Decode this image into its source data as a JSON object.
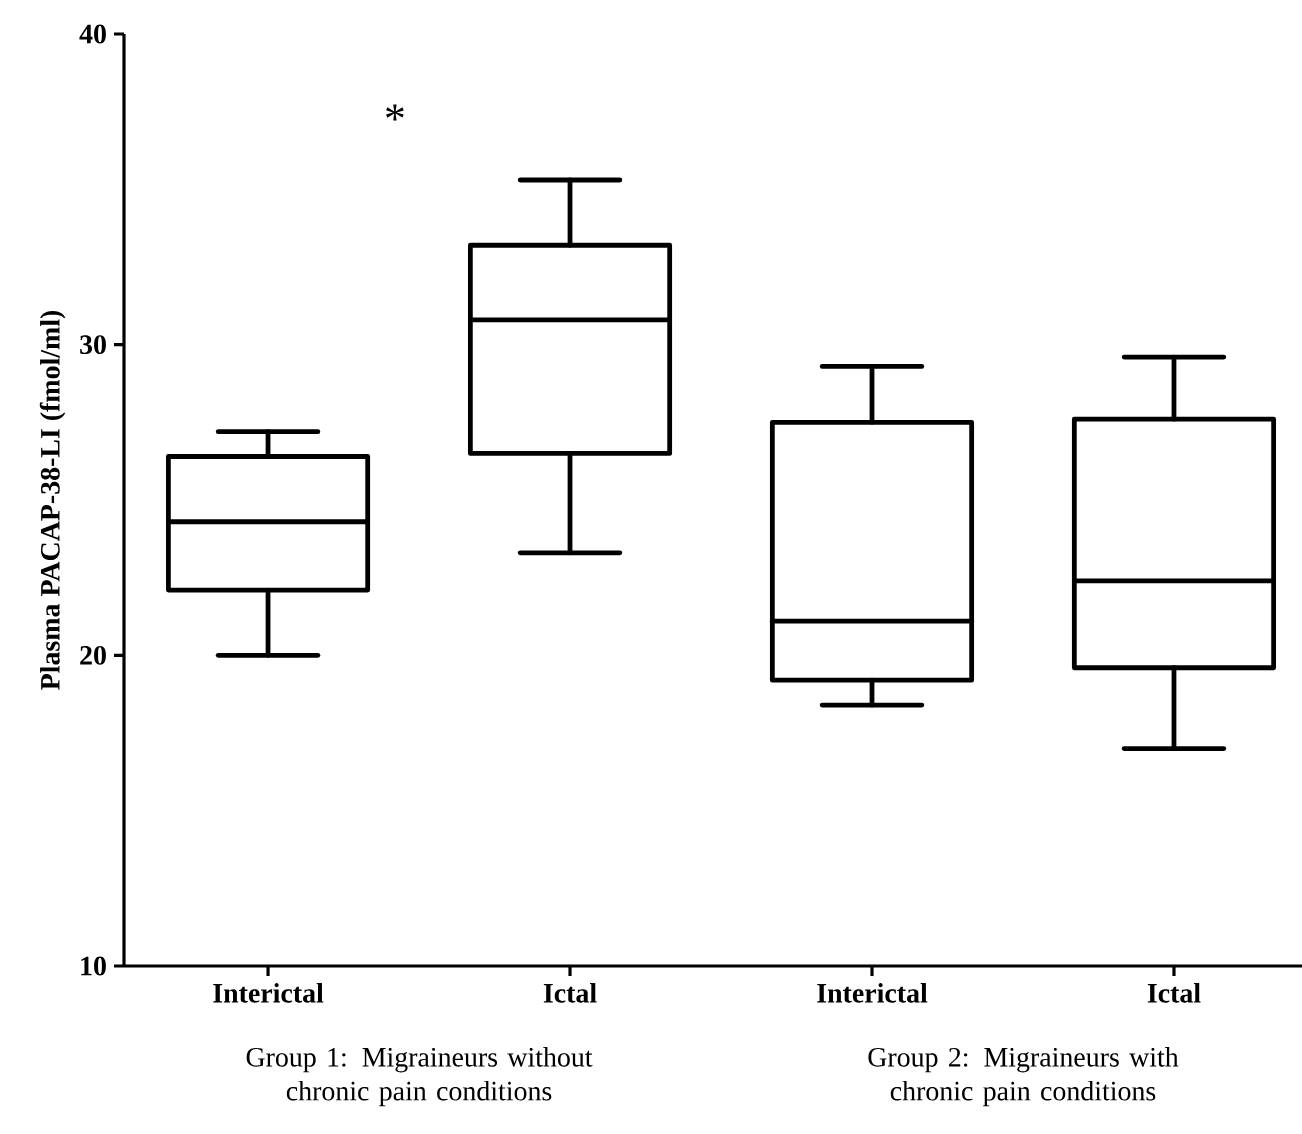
{
  "chart_data": {
    "type": "box",
    "ylabel": "Plasma PACAP-38-LI (fmol/ml)",
    "categories": [
      "Interictal",
      "Ictal",
      "Interictal",
      "Ictal"
    ],
    "boxes": [
      {
        "low": 20.0,
        "q1": 22.1,
        "median": 24.3,
        "q3": 26.4,
        "high": 27.2
      },
      {
        "low": 23.3,
        "q1": 26.5,
        "median": 30.8,
        "q3": 33.2,
        "high": 35.3
      },
      {
        "low": 18.4,
        "q1": 19.2,
        "median": 21.1,
        "q3": 27.5,
        "high": 29.3
      },
      {
        "low": 17.0,
        "q1": 19.6,
        "median": 22.4,
        "q3": 27.6,
        "high": 29.6
      }
    ],
    "ylim": [
      10,
      40
    ],
    "yticks": [
      10,
      20,
      30,
      40
    ],
    "annotations": [
      "*",
      "Group 1: Migraineurs without chronic pain conditions",
      "Group 2: Migraineurs with chronic pain conditions"
    ]
  }
}
